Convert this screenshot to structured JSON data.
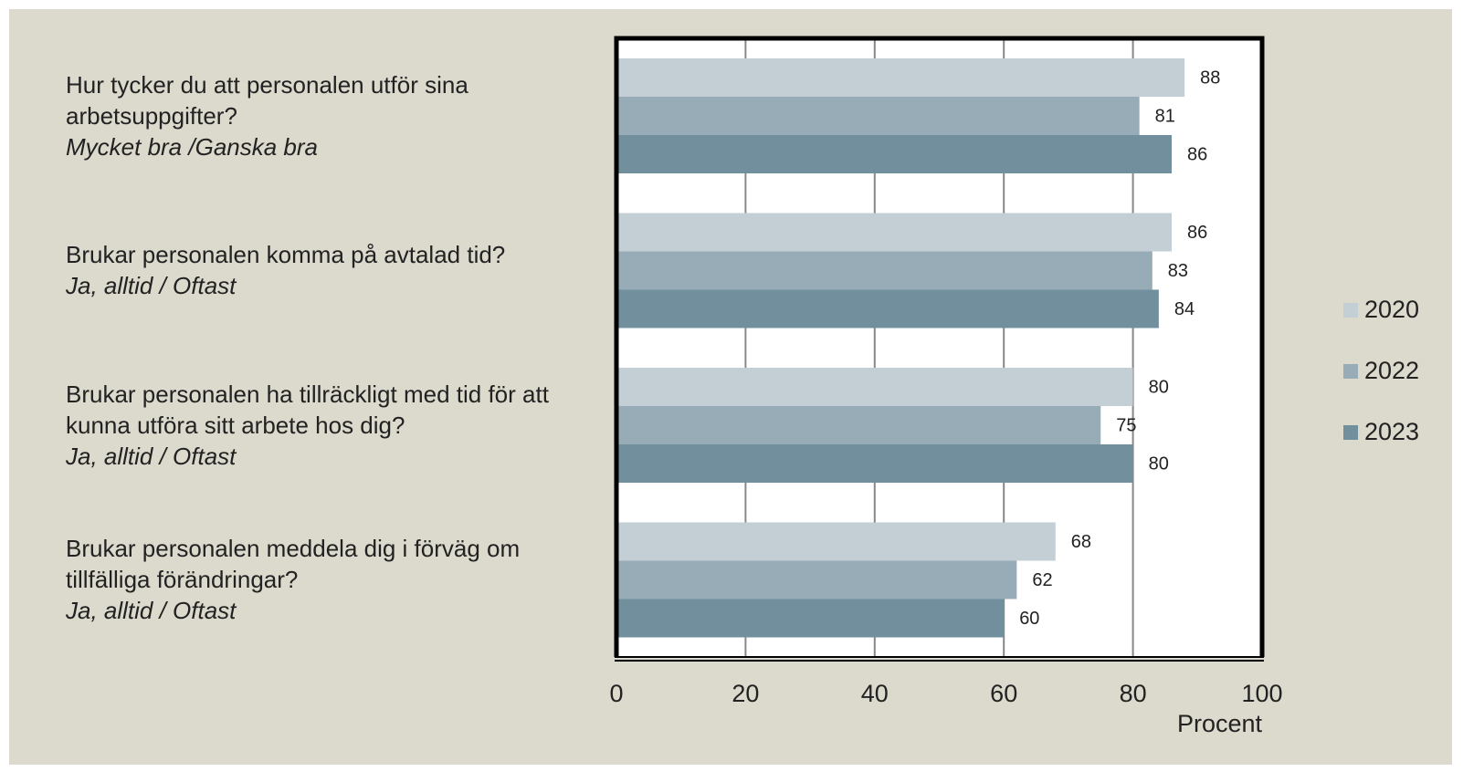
{
  "chart_data": {
    "type": "hbar",
    "categories": [
      "Hur tycker du att personalen utför sina arbetsuppgifter?",
      "Brukar personalen komma på avtalad tid?",
      "Brukar personalen ha tillräckligt med tid för att kunna utföra sitt arbete hos dig?",
      "Brukar personalen meddela dig i förväg om tillfälliga förändringar?"
    ],
    "category_answers": [
      "Mycket bra /Ganska bra",
      "Ja, alltid / Oftast",
      "Ja, alltid / Oftast",
      "Ja, alltid / Oftast"
    ],
    "series": [
      {
        "name": "2020",
        "color": "#c3ced5",
        "values": [
          88,
          86,
          80,
          68
        ]
      },
      {
        "name": "2022",
        "color": "#98acb8",
        "values": [
          81,
          83,
          75,
          62
        ]
      },
      {
        "name": "2023",
        "color": "#728f9e",
        "values": [
          86,
          84,
          80,
          60
        ]
      }
    ],
    "xlim": [
      0,
      100
    ],
    "xticks": [
      0,
      20,
      40,
      60,
      80,
      100
    ],
    "xlabel": "Procent",
    "grid": true,
    "legend": "right"
  }
}
